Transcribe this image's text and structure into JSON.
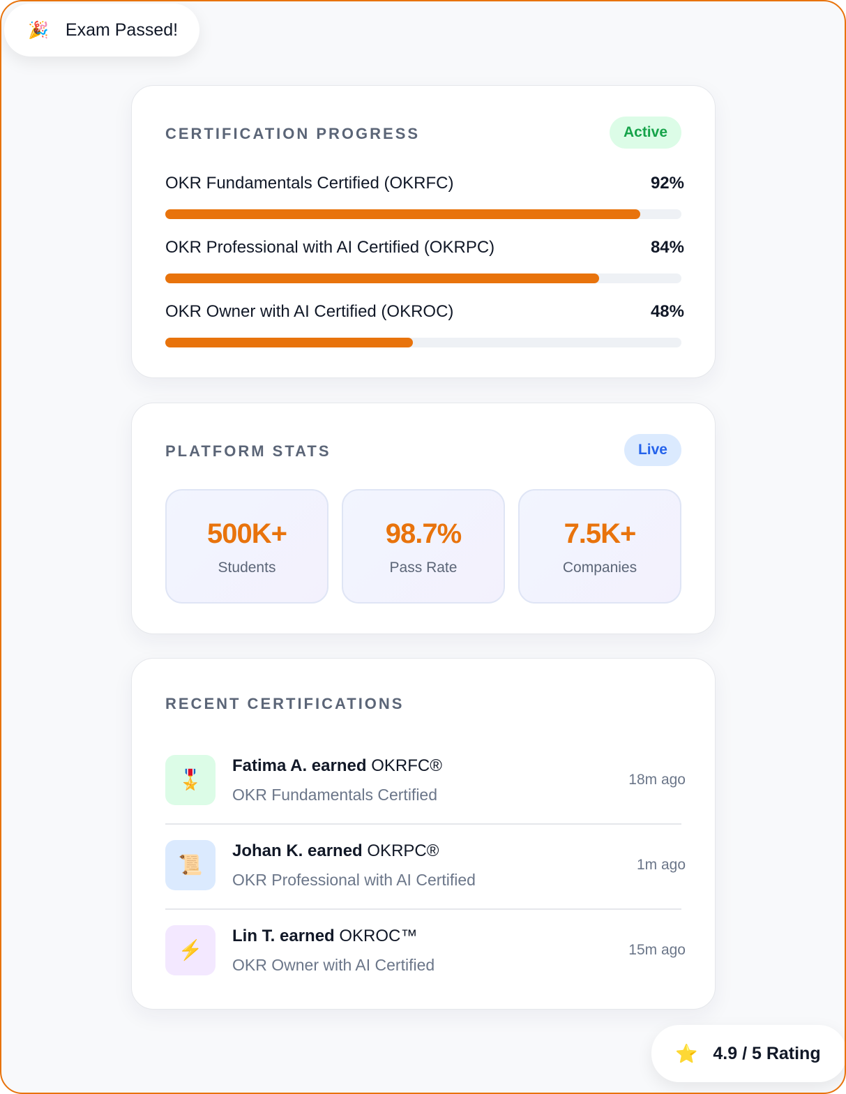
{
  "toast": {
    "icon": "🎉",
    "text": "Exam Passed!"
  },
  "progress_card": {
    "title": "CERTIFICATION PROGRESS",
    "badge": "Active",
    "items": [
      {
        "label": "OKR Fundamentals Certified (OKRFC)",
        "value": 92,
        "value_label": "92%"
      },
      {
        "label": "OKR Professional with AI Certified (OKRPC)",
        "value": 84,
        "value_label": "84%"
      },
      {
        "label": "OKR Owner with AI Certified (OKROC)",
        "value": 48,
        "value_label": "48%"
      }
    ]
  },
  "stats_card": {
    "title": "PLATFORM STATS",
    "badge": "Live",
    "stats": [
      {
        "value": "500K+",
        "label": "Students"
      },
      {
        "value": "98.7%",
        "label": "Pass Rate"
      },
      {
        "value": "7.5K+",
        "label": "Companies"
      }
    ]
  },
  "recent_card": {
    "title": "RECENT CERTIFICATIONS",
    "items": [
      {
        "icon": "🎖️",
        "name": "Fatima A. earned",
        "cert": "OKRFC®",
        "subtitle": "OKR Fundamentals Certified",
        "time": "18m ago"
      },
      {
        "icon": "📜",
        "name": "Johan K. earned",
        "cert": "OKRPC®",
        "subtitle": "OKR Professional with AI Certified",
        "time": "1m ago"
      },
      {
        "icon": "⚡",
        "name": "Lin T. earned",
        "cert": "OKROC™",
        "subtitle": "OKR Owner with AI Certified",
        "time": "15m ago"
      }
    ]
  },
  "rating": {
    "icon": "⭐",
    "text": "4.9 / 5 Rating"
  }
}
